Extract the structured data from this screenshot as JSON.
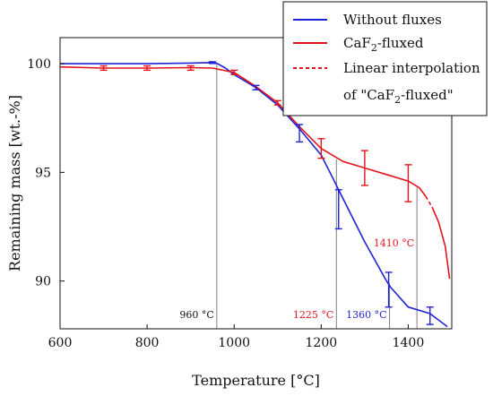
{
  "chart_data": {
    "type": "line",
    "xlabel": "Temperature [°C]",
    "ylabel": "Remaining mass [wt.-%]",
    "xlim": [
      600,
      1500
    ],
    "ylim": [
      87.8,
      101.2
    ],
    "x_ticks": [
      600,
      800,
      1000,
      1200,
      1400
    ],
    "y_ticks": [
      90,
      95,
      100
    ],
    "legend_position": "top-right",
    "colors": {
      "blue": "#1f23d6",
      "red": "#e3141b",
      "gray": "#808080"
    },
    "legend": {
      "without": "Without fluxes",
      "caf2_prefix": "CaF",
      "caf2_sub": "2",
      "caf2_suffix": "-fluxed",
      "interp_line1": "Linear interpolation",
      "interp_line2_prefix": "of \"CaF",
      "interp_line2_sub": "2",
      "interp_line2_suffix": "-fluxed\""
    },
    "series": [
      {
        "name": "Without fluxes",
        "color": "#1f23d6",
        "style": "solid",
        "points": [
          [
            600,
            100.0
          ],
          [
            700,
            100.0
          ],
          [
            800,
            100.0
          ],
          [
            900,
            100.03
          ],
          [
            940,
            100.05
          ],
          [
            960,
            100.02
          ],
          [
            980,
            99.8
          ],
          [
            1000,
            99.5
          ],
          [
            1050,
            98.9
          ],
          [
            1100,
            98.1
          ],
          [
            1150,
            97.0
          ],
          [
            1200,
            95.8
          ],
          [
            1225,
            94.8
          ],
          [
            1250,
            93.8
          ],
          [
            1300,
            91.8
          ],
          [
            1350,
            90.0
          ],
          [
            1360,
            89.7
          ],
          [
            1400,
            88.8
          ],
          [
            1450,
            88.5
          ],
          [
            1490,
            87.9
          ]
        ],
        "error_bars": [
          {
            "x": 950,
            "y": 100.05,
            "err": 0.04
          },
          {
            "x": 1050,
            "y": 98.9,
            "err": 0.1
          },
          {
            "x": 1150,
            "y": 96.8,
            "err": 0.4
          },
          {
            "x": 1240,
            "y": 93.3,
            "err": 0.9
          },
          {
            "x": 1355,
            "y": 89.6,
            "err": 0.8
          },
          {
            "x": 1450,
            "y": 88.4,
            "err": 0.4
          }
        ]
      },
      {
        "name": "CaF2-fluxed",
        "color": "#e3141b",
        "style": "solid",
        "points": [
          [
            600,
            99.85
          ],
          [
            700,
            99.8
          ],
          [
            800,
            99.8
          ],
          [
            900,
            99.82
          ],
          [
            950,
            99.8
          ],
          [
            1000,
            99.6
          ],
          [
            1050,
            98.95
          ],
          [
            1100,
            98.2
          ],
          [
            1150,
            97.1
          ],
          [
            1200,
            96.1
          ],
          [
            1250,
            95.5
          ],
          [
            1300,
            95.2
          ],
          [
            1350,
            94.9
          ],
          [
            1400,
            94.6
          ],
          [
            1425,
            94.3
          ],
          [
            1440,
            93.9
          ]
        ],
        "error_bars": [
          {
            "x": 700,
            "y": 99.8,
            "err": 0.1
          },
          {
            "x": 800,
            "y": 99.8,
            "err": 0.1
          },
          {
            "x": 900,
            "y": 99.8,
            "err": 0.1
          },
          {
            "x": 1000,
            "y": 99.6,
            "err": 0.1
          },
          {
            "x": 1100,
            "y": 98.2,
            "err": 0.1
          },
          {
            "x": 1200,
            "y": 96.1,
            "err": 0.45
          },
          {
            "x": 1300,
            "y": 95.2,
            "err": 0.8
          },
          {
            "x": 1400,
            "y": 94.5,
            "err": 0.85
          }
        ]
      },
      {
        "name": "Linear interpolation of \"CaF2-fluxed\"",
        "color": "#e3141b",
        "style": "dashed",
        "points": [
          [
            1440,
            93.9
          ],
          [
            1455,
            93.4
          ]
        ]
      },
      {
        "name": "CaF2-fluxed (continued)",
        "color": "#e3141b",
        "style": "solid",
        "points": [
          [
            1455,
            93.4
          ],
          [
            1470,
            92.7
          ],
          [
            1485,
            91.6
          ],
          [
            1495,
            90.1
          ]
        ]
      }
    ],
    "annotations": [
      {
        "label": "960 °C",
        "x": 960,
        "line_from_y": 87.8,
        "line_to_y": 100.05,
        "label_y": 88.3,
        "color": "#111111",
        "anchor": "end"
      },
      {
        "label": "1225 °C",
        "x": 1235,
        "line_from_y": 87.8,
        "line_to_y": 95.6,
        "label_y": 88.3,
        "color": "#e3141b",
        "anchor": "end"
      },
      {
        "label": "1360 °C",
        "x": 1357,
        "line_from_y": 87.8,
        "line_to_y": 89.9,
        "label_y": 88.3,
        "color": "#1f23d6",
        "anchor": "end"
      },
      {
        "label": "1410 °C",
        "x": 1420,
        "line_from_y": 87.8,
        "line_to_y": 94.3,
        "label_y": 91.6,
        "color": "#e3141b",
        "anchor": "end"
      }
    ]
  }
}
